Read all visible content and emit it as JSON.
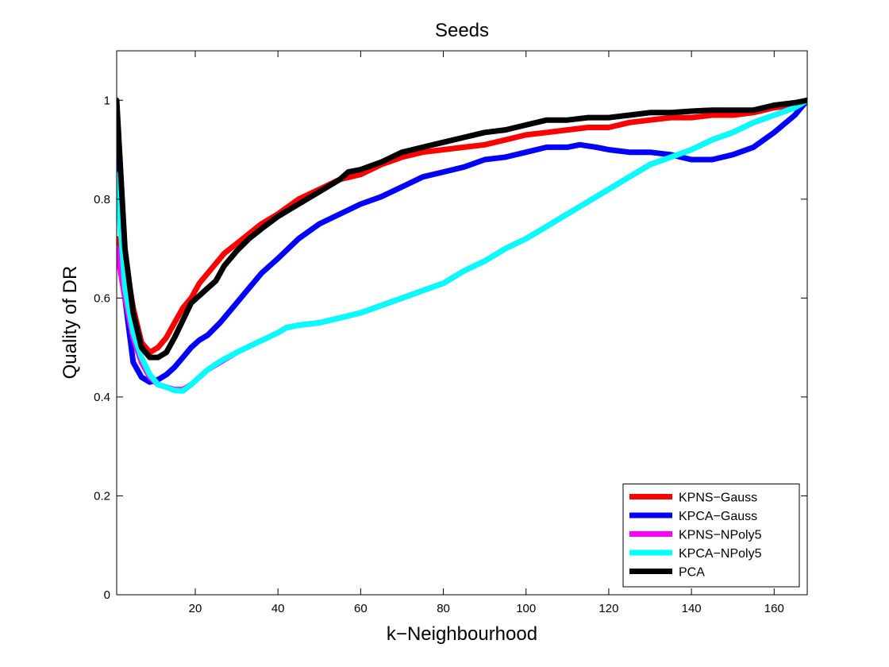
{
  "chart_data": {
    "type": "line",
    "title": "Seeds",
    "xlabel": "k−Neighbourhood",
    "ylabel": "Quality of DR",
    "xlim": [
      1,
      168
    ],
    "ylim": [
      0,
      1.1
    ],
    "xticks": [
      20,
      40,
      60,
      80,
      100,
      120,
      140,
      160
    ],
    "yticks": [
      0,
      0.2,
      0.4,
      0.6,
      0.8,
      1
    ],
    "ytick_labels": [
      "0",
      "0.2",
      "0.4",
      "0.6",
      "0.8",
      "1"
    ],
    "grid": false,
    "legend_position": "bottom-right",
    "series": [
      {
        "name": "KPNS−Gauss",
        "color": "#ff0000",
        "points": [
          [
            1,
            0.72
          ],
          [
            3,
            0.68
          ],
          [
            5,
            0.58
          ],
          [
            7,
            0.51
          ],
          [
            9,
            0.49
          ],
          [
            11,
            0.5
          ],
          [
            13,
            0.52
          ],
          [
            15,
            0.55
          ],
          [
            17,
            0.58
          ],
          [
            19,
            0.6
          ],
          [
            21,
            0.63
          ],
          [
            23,
            0.65
          ],
          [
            25,
            0.67
          ],
          [
            27,
            0.69
          ],
          [
            30,
            0.71
          ],
          [
            33,
            0.73
          ],
          [
            36,
            0.75
          ],
          [
            40,
            0.77
          ],
          [
            45,
            0.8
          ],
          [
            50,
            0.82
          ],
          [
            55,
            0.84
          ],
          [
            60,
            0.85
          ],
          [
            65,
            0.87
          ],
          [
            70,
            0.885
          ],
          [
            75,
            0.895
          ],
          [
            80,
            0.9
          ],
          [
            85,
            0.905
          ],
          [
            90,
            0.91
          ],
          [
            95,
            0.92
          ],
          [
            100,
            0.93
          ],
          [
            105,
            0.935
          ],
          [
            110,
            0.94
          ],
          [
            115,
            0.945
          ],
          [
            120,
            0.945
          ],
          [
            125,
            0.955
          ],
          [
            130,
            0.96
          ],
          [
            135,
            0.965
          ],
          [
            140,
            0.965
          ],
          [
            145,
            0.97
          ],
          [
            150,
            0.97
          ],
          [
            155,
            0.975
          ],
          [
            160,
            0.985
          ],
          [
            165,
            0.99
          ],
          [
            168,
            1.0
          ]
        ]
      },
      {
        "name": "KPCA−Gauss",
        "color": "#0000ff",
        "points": [
          [
            1,
            0.9
          ],
          [
            3,
            0.6
          ],
          [
            5,
            0.47
          ],
          [
            7,
            0.44
          ],
          [
            9,
            0.43
          ],
          [
            11,
            0.435
          ],
          [
            13,
            0.445
          ],
          [
            15,
            0.46
          ],
          [
            17,
            0.48
          ],
          [
            19,
            0.5
          ],
          [
            21,
            0.515
          ],
          [
            23,
            0.525
          ],
          [
            26,
            0.55
          ],
          [
            30,
            0.59
          ],
          [
            33,
            0.62
          ],
          [
            36,
            0.65
          ],
          [
            40,
            0.68
          ],
          [
            45,
            0.72
          ],
          [
            50,
            0.75
          ],
          [
            55,
            0.77
          ],
          [
            60,
            0.79
          ],
          [
            65,
            0.805
          ],
          [
            70,
            0.825
          ],
          [
            75,
            0.845
          ],
          [
            80,
            0.855
          ],
          [
            85,
            0.865
          ],
          [
            90,
            0.88
          ],
          [
            95,
            0.885
          ],
          [
            100,
            0.895
          ],
          [
            105,
            0.905
          ],
          [
            110,
            0.905
          ],
          [
            113,
            0.91
          ],
          [
            117,
            0.905
          ],
          [
            120,
            0.9
          ],
          [
            125,
            0.895
          ],
          [
            130,
            0.895
          ],
          [
            135,
            0.89
          ],
          [
            140,
            0.88
          ],
          [
            145,
            0.88
          ],
          [
            150,
            0.89
          ],
          [
            155,
            0.905
          ],
          [
            160,
            0.935
          ],
          [
            165,
            0.97
          ],
          [
            168,
            1.0
          ]
        ]
      },
      {
        "name": "KPNS−NPoly5",
        "color": "#ff00ff",
        "points": [
          [
            1,
            0.7
          ],
          [
            3,
            0.6
          ],
          [
            5,
            0.52
          ],
          [
            7,
            0.47
          ],
          [
            9,
            0.44
          ],
          [
            11,
            0.425
          ],
          [
            13,
            0.42
          ],
          [
            15,
            0.415
          ],
          [
            17,
            0.415
          ],
          [
            19,
            0.425
          ],
          [
            21,
            0.44
          ],
          [
            23,
            0.455
          ],
          [
            26,
            0.47
          ],
          [
            30,
            0.49
          ],
          [
            35,
            0.51
          ],
          [
            40,
            0.53
          ],
          [
            42,
            0.54
          ],
          [
            45,
            0.545
          ],
          [
            50,
            0.55
          ],
          [
            55,
            0.56
          ],
          [
            60,
            0.57
          ],
          [
            65,
            0.585
          ],
          [
            70,
            0.6
          ],
          [
            75,
            0.615
          ],
          [
            80,
            0.63
          ],
          [
            85,
            0.655
          ],
          [
            90,
            0.675
          ],
          [
            95,
            0.7
          ],
          [
            100,
            0.72
          ],
          [
            105,
            0.745
          ],
          [
            110,
            0.77
          ],
          [
            115,
            0.795
          ],
          [
            120,
            0.82
          ],
          [
            125,
            0.845
          ],
          [
            130,
            0.87
          ],
          [
            135,
            0.885
          ],
          [
            140,
            0.9
          ],
          [
            145,
            0.92
          ],
          [
            150,
            0.935
          ],
          [
            155,
            0.955
          ],
          [
            160,
            0.97
          ],
          [
            165,
            0.985
          ],
          [
            168,
            1.0
          ]
        ]
      },
      {
        "name": "KPCA−NPoly5",
        "color": "#00ffff",
        "points": [
          [
            1,
            0.85
          ],
          [
            3,
            0.62
          ],
          [
            5,
            0.53
          ],
          [
            7,
            0.48
          ],
          [
            9,
            0.445
          ],
          [
            11,
            0.425
          ],
          [
            13,
            0.42
          ],
          [
            15,
            0.413
          ],
          [
            17,
            0.412
          ],
          [
            19,
            0.425
          ],
          [
            21,
            0.44
          ],
          [
            23,
            0.455
          ],
          [
            26,
            0.472
          ],
          [
            30,
            0.49
          ],
          [
            35,
            0.51
          ],
          [
            40,
            0.53
          ],
          [
            42,
            0.54
          ],
          [
            45,
            0.545
          ],
          [
            50,
            0.55
          ],
          [
            55,
            0.56
          ],
          [
            60,
            0.57
          ],
          [
            65,
            0.585
          ],
          [
            70,
            0.6
          ],
          [
            75,
            0.615
          ],
          [
            80,
            0.63
          ],
          [
            85,
            0.655
          ],
          [
            90,
            0.675
          ],
          [
            95,
            0.7
          ],
          [
            100,
            0.72
          ],
          [
            105,
            0.745
          ],
          [
            110,
            0.77
          ],
          [
            115,
            0.795
          ],
          [
            120,
            0.82
          ],
          [
            125,
            0.845
          ],
          [
            130,
            0.87
          ],
          [
            135,
            0.885
          ],
          [
            140,
            0.9
          ],
          [
            145,
            0.92
          ],
          [
            150,
            0.935
          ],
          [
            155,
            0.955
          ],
          [
            160,
            0.97
          ],
          [
            165,
            0.985
          ],
          [
            168,
            1.0
          ]
        ]
      },
      {
        "name": "PCA",
        "color": "#000000",
        "points": [
          [
            1,
            1.0
          ],
          [
            3,
            0.7
          ],
          [
            5,
            0.57
          ],
          [
            7,
            0.5
          ],
          [
            9,
            0.48
          ],
          [
            11,
            0.48
          ],
          [
            13,
            0.49
          ],
          [
            15,
            0.52
          ],
          [
            17,
            0.555
          ],
          [
            19,
            0.59
          ],
          [
            21,
            0.605
          ],
          [
            23,
            0.62
          ],
          [
            25,
            0.635
          ],
          [
            27,
            0.665
          ],
          [
            30,
            0.695
          ],
          [
            33,
            0.72
          ],
          [
            36,
            0.74
          ],
          [
            40,
            0.765
          ],
          [
            45,
            0.79
          ],
          [
            50,
            0.815
          ],
          [
            55,
            0.84
          ],
          [
            57,
            0.855
          ],
          [
            60,
            0.86
          ],
          [
            65,
            0.875
          ],
          [
            70,
            0.895
          ],
          [
            75,
            0.905
          ],
          [
            80,
            0.915
          ],
          [
            85,
            0.925
          ],
          [
            90,
            0.935
          ],
          [
            95,
            0.94
          ],
          [
            100,
            0.95
          ],
          [
            105,
            0.96
          ],
          [
            110,
            0.96
          ],
          [
            115,
            0.965
          ],
          [
            120,
            0.965
          ],
          [
            125,
            0.97
          ],
          [
            130,
            0.975
          ],
          [
            135,
            0.975
          ],
          [
            140,
            0.978
          ],
          [
            145,
            0.98
          ],
          [
            150,
            0.98
          ],
          [
            155,
            0.98
          ],
          [
            160,
            0.99
          ],
          [
            165,
            0.995
          ],
          [
            168,
            1.0
          ]
        ]
      }
    ]
  }
}
